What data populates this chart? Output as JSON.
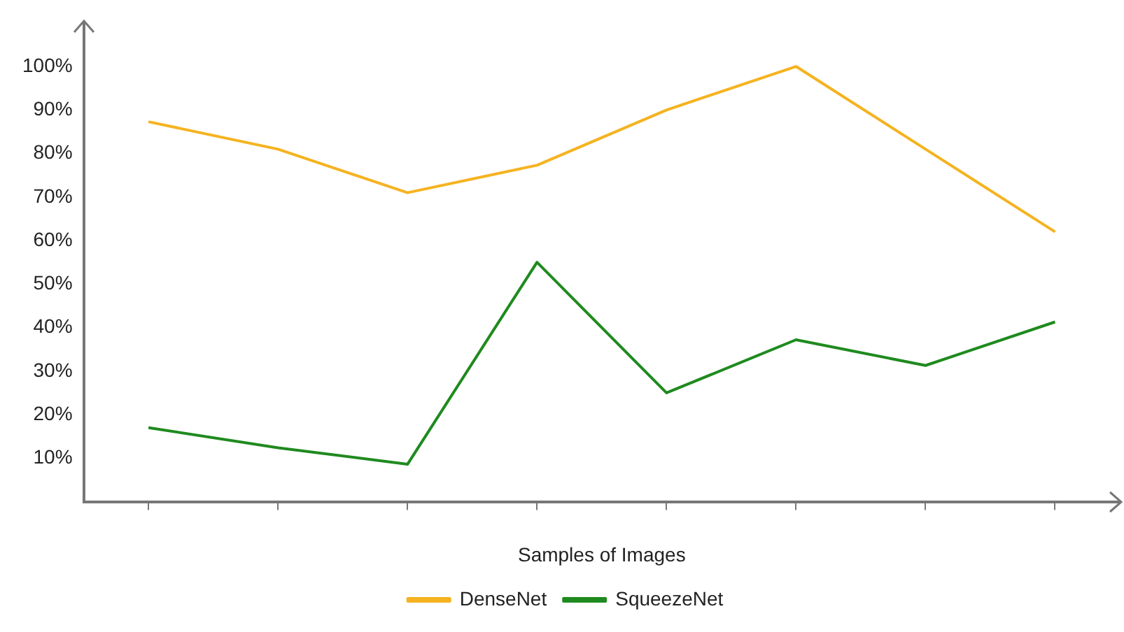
{
  "chart_data": {
    "type": "line",
    "xlabel": "Samples of Images",
    "categories": [
      null,
      null,
      null,
      null,
      null,
      null,
      null,
      null
    ],
    "series": [
      {
        "name": "DenseNet",
        "color": "#f5b320",
        "values": [
          87.3,
          81,
          71,
          77.3,
          90,
          100,
          81,
          62
        ]
      },
      {
        "name": "SqueezeNet",
        "color": "#1f8a1f",
        "values": [
          17,
          12.4,
          8.6,
          55,
          25,
          37.2,
          31.3,
          41.3
        ]
      }
    ],
    "ylim": [
      0,
      110
    ],
    "yticks": [
      {
        "value": 10,
        "label": "10%"
      },
      {
        "value": 20,
        "label": "20%"
      },
      {
        "value": 30,
        "label": "30%"
      },
      {
        "value": 40,
        "label": "40%"
      },
      {
        "value": 50,
        "label": "50%"
      },
      {
        "value": 60,
        "label": "60%"
      },
      {
        "value": 70,
        "label": "70%"
      },
      {
        "value": 80,
        "label": "80%"
      },
      {
        "value": 90,
        "label": "90%"
      },
      {
        "value": 100,
        "label": "100%"
      }
    ],
    "grid": false,
    "legend": "bottom",
    "marker": "none",
    "line_style": "solid"
  }
}
